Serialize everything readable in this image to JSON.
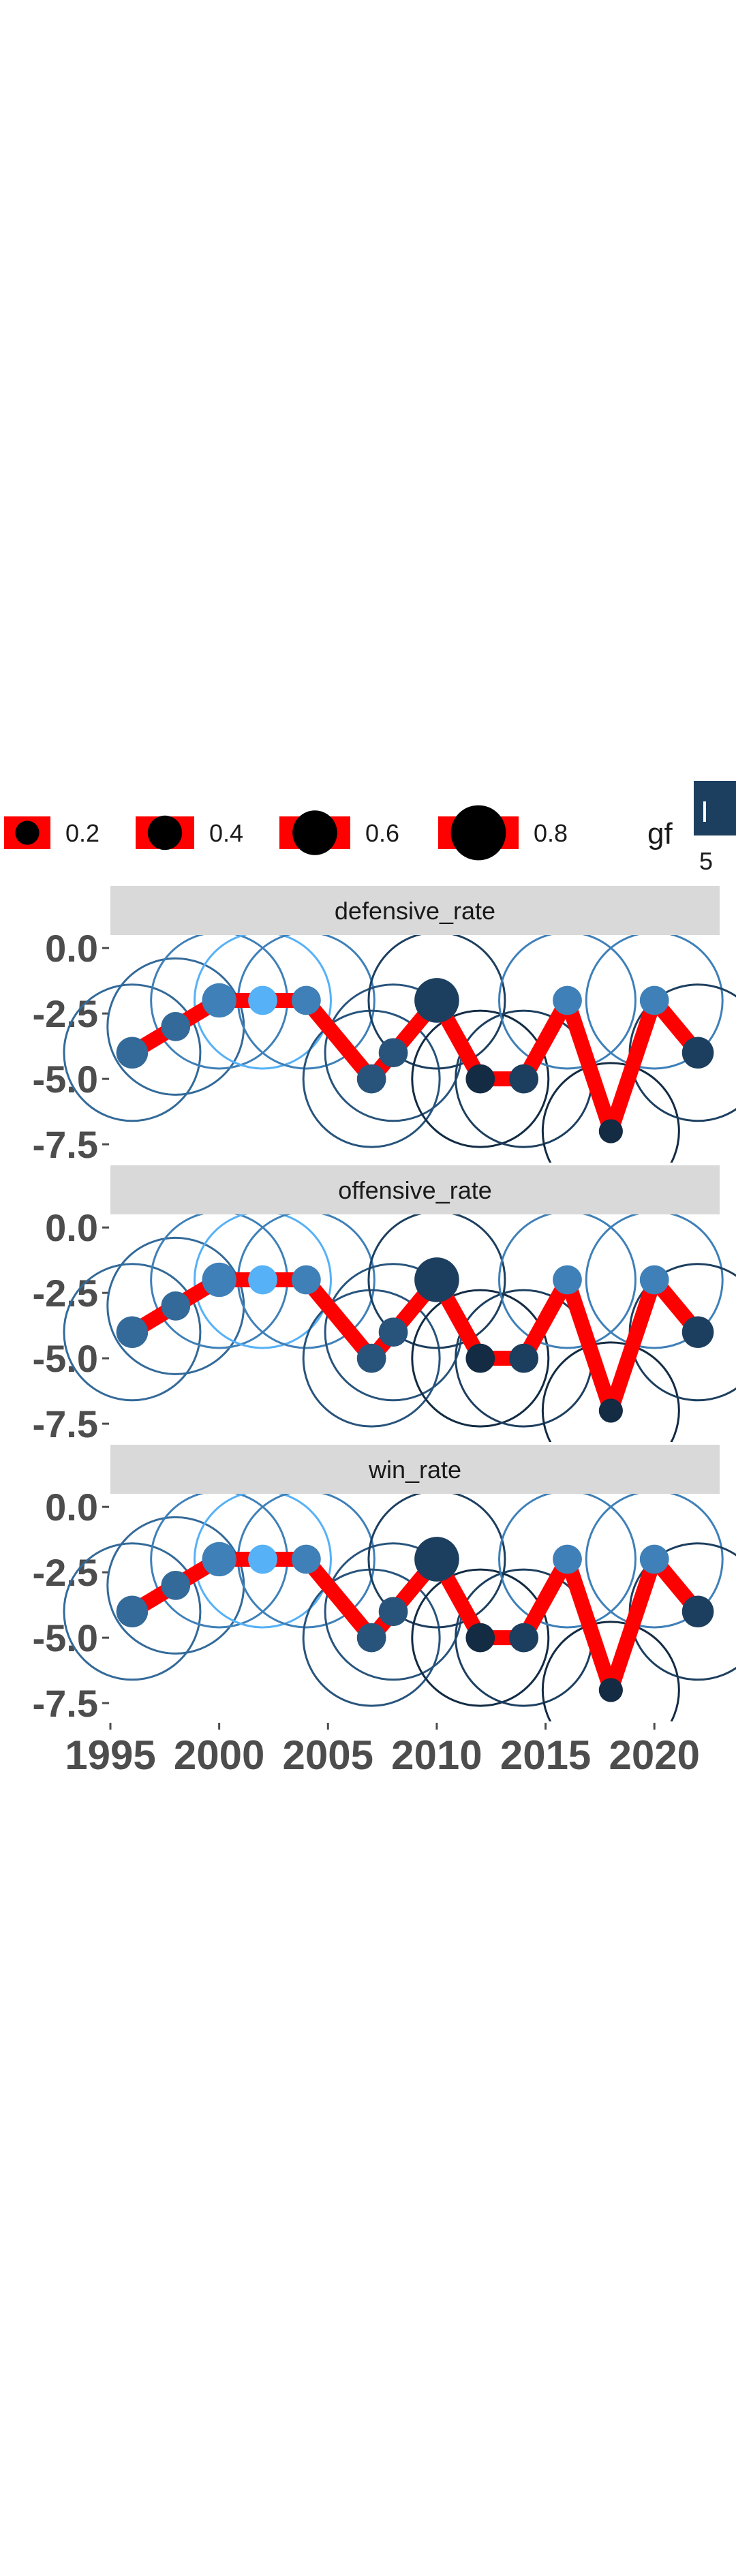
{
  "chart_data": {
    "type": "line",
    "panels": [
      "defensive_rate",
      "offensive_rate",
      "win_rate"
    ],
    "x": [
      1996,
      1998,
      2000,
      2002,
      2004,
      2007,
      2008,
      2010,
      2012,
      2014,
      2016,
      2018,
      2020,
      2022
    ],
    "y": [
      -4.0,
      -3.0,
      -2.0,
      -2.0,
      -2.0,
      -5.0,
      -4.0,
      -2.0,
      -5.0,
      -5.0,
      -2.0,
      -7.0,
      -2.0,
      -4.0
    ],
    "point_size": [
      0.35,
      0.3,
      0.4,
      0.3,
      0.3,
      0.3,
      0.3,
      0.6,
      0.3,
      0.3,
      0.3,
      0.2,
      0.3,
      0.35
    ],
    "gf": [
      4,
      4,
      5,
      6,
      5,
      3,
      3,
      2,
      1,
      2,
      5,
      1,
      5,
      2
    ],
    "xlim": [
      1995,
      2023
    ],
    "ylim": [
      -8.2,
      0.5
    ],
    "x_ticks": [
      "1995",
      "2000",
      "2005",
      "2010",
      "2015",
      "2020"
    ],
    "y_ticks": [
      "0.0",
      "-2.5",
      "-5.0",
      "-7.5"
    ],
    "x_tick_values": [
      1995,
      2000,
      2005,
      2010,
      2015,
      2020
    ],
    "y_tick_values": [
      0,
      -2.5,
      -5,
      -7.5
    ],
    "line_color": "#ff0000",
    "strip_fill": "#d9d9d9",
    "gf_colors": [
      "#132b43",
      "#1d3f5f",
      "#28547c",
      "#336a99",
      "#3f80b8",
      "#56b1f7"
    ],
    "legend": {
      "size_title": "",
      "size_entries": [
        {
          "label": "0.2",
          "value": 0.2
        },
        {
          "label": "0.4",
          "value": 0.4
        },
        {
          "label": "0.6",
          "value": 0.6
        },
        {
          "label": "0.8",
          "value": 0.8
        }
      ],
      "color_title": "gf",
      "color_ticks": [
        "5"
      ],
      "placement": "top"
    },
    "grid": false
  }
}
